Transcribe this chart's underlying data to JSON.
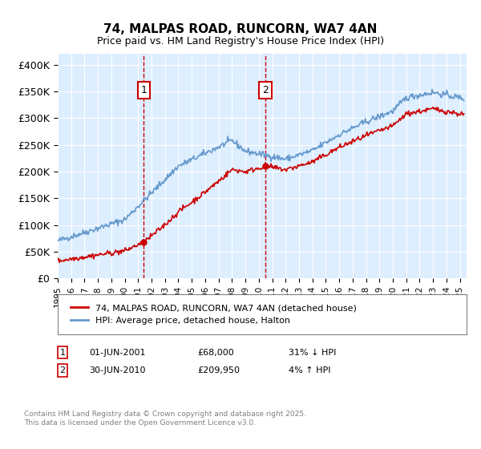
{
  "title": "74, MALPAS ROAD, RUNCORN, WA7 4AN",
  "subtitle": "Price paid vs. HM Land Registry's House Price Index (HPI)",
  "ylim": [
    0,
    420000
  ],
  "xlim_start": 1995.0,
  "xlim_end": 2025.5,
  "sale1": {
    "date_x": 2001.42,
    "price": 68000,
    "label": "1"
  },
  "sale2": {
    "date_x": 2010.5,
    "price": 209950,
    "label": "2"
  },
  "legend_line1": "74, MALPAS ROAD, RUNCORN, WA7 4AN (detached house)",
  "legend_line2": "HPI: Average price, detached house, Halton",
  "footer": "Contains HM Land Registry data © Crown copyright and database right 2025.\nThis data is licensed under the Open Government Licence v3.0.",
  "red_color": "#cc0000",
  "blue_color": "#6699cc",
  "bg_color": "#ddeeff",
  "grid_color": "#ffffff",
  "box_color": "#cc0000"
}
